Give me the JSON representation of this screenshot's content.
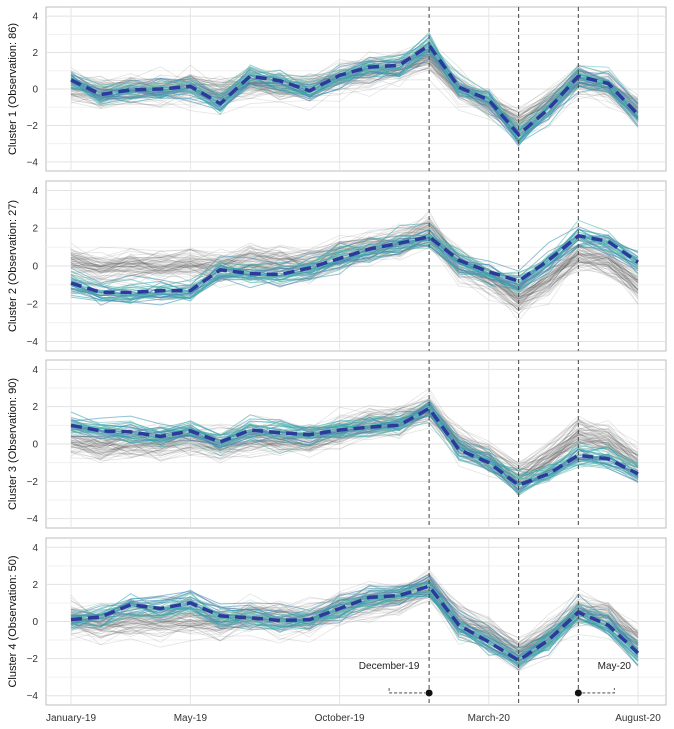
{
  "chart_data": {
    "type": "line",
    "title": "",
    "x_tick_labels": [
      "January-19",
      "May-19",
      "October-19",
      "March-20",
      "August-20"
    ],
    "x_tick_months": [
      0,
      4,
      9,
      14,
      19
    ],
    "n_months": 20,
    "ylim": [
      -4.5,
      4.5
    ],
    "y_ticks": [
      -4,
      -2,
      0,
      2,
      4
    ],
    "vlines_months": [
      12,
      15,
      17
    ],
    "annotations": [
      {
        "label": "December-19",
        "month": 12,
        "side": "left"
      },
      {
        "label": "May-20",
        "month": 17,
        "side": "right"
      }
    ],
    "panels": [
      {
        "label": "Cluster 1 (Observation: 86)",
        "centroid": [
          0.5,
          -0.3,
          -0.05,
          0.0,
          0.15,
          -0.8,
          0.7,
          0.45,
          -0.1,
          0.75,
          1.2,
          1.3,
          2.4,
          0.1,
          -0.6,
          -2.5,
          -1.1,
          0.7,
          0.3,
          -1.4
        ]
      },
      {
        "label": "Cluster 2 (Observation: 27)",
        "centroid": [
          -0.9,
          -1.4,
          -1.4,
          -1.3,
          -1.3,
          -0.2,
          -0.4,
          -0.45,
          -0.1,
          0.4,
          0.9,
          1.2,
          1.55,
          0.3,
          -0.3,
          -0.8,
          0.3,
          1.6,
          1.3,
          0.2
        ]
      },
      {
        "label": "Cluster 3 (Observation: 90)",
        "centroid": [
          1.0,
          0.7,
          0.65,
          0.4,
          0.7,
          0.1,
          0.75,
          0.6,
          0.5,
          0.75,
          0.9,
          1.0,
          1.9,
          -0.3,
          -1.0,
          -2.2,
          -1.6,
          -0.6,
          -0.8,
          -1.6
        ]
      },
      {
        "label": "Cluster 4 (Observation: 50)",
        "centroid": [
          0.1,
          0.25,
          0.9,
          0.7,
          1.0,
          0.3,
          0.2,
          0.05,
          0.1,
          0.7,
          1.3,
          1.4,
          1.9,
          -0.2,
          -1.1,
          -2.1,
          -1.0,
          0.5,
          -0.2,
          -1.7
        ]
      }
    ],
    "line_colors": {
      "centroid": "#2b3a9c",
      "member": "#3aa8b2",
      "background": "#555555"
    }
  }
}
